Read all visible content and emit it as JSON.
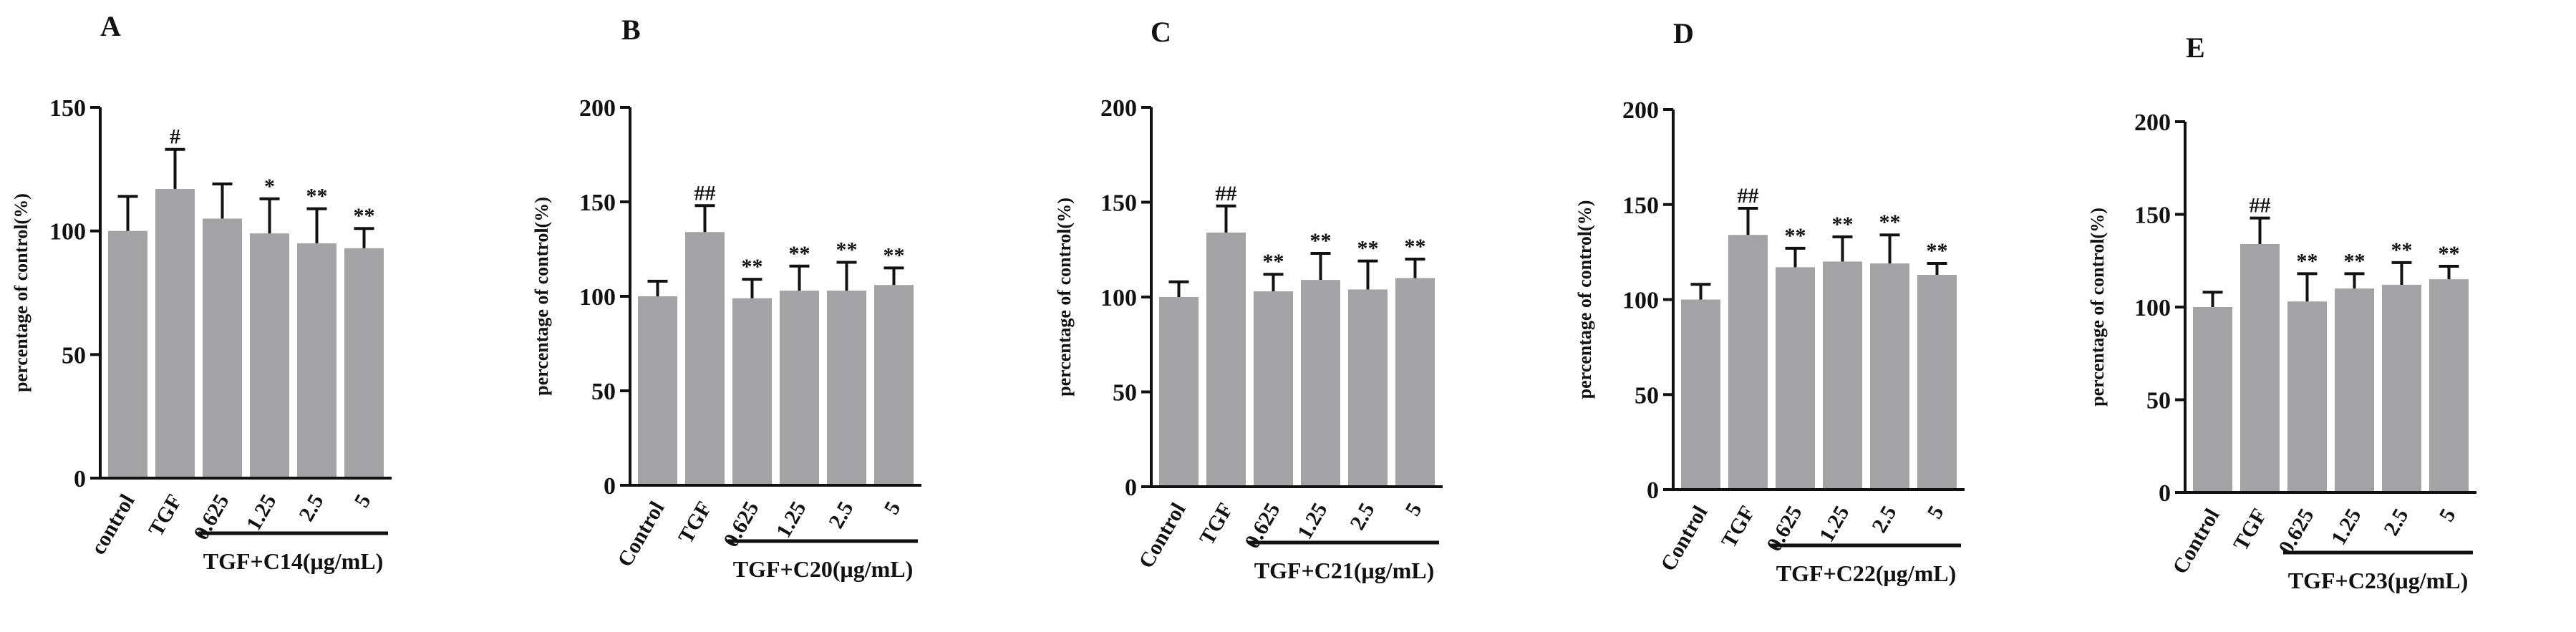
{
  "figure": {
    "bar_color": "#a3a3a5",
    "ink_color": "#111111",
    "background": "#ffffff"
  },
  "chart_data": [
    {
      "type": "bar",
      "panel": "A",
      "categories": [
        "control",
        "TGF",
        "0.625",
        "1.25",
        "2.5",
        "5"
      ],
      "values": [
        100,
        117,
        105,
        99,
        95,
        93
      ],
      "errors": [
        14,
        16,
        14,
        14,
        14,
        8
      ],
      "annotations": [
        "",
        "#",
        "",
        "*",
        "**",
        "**"
      ],
      "group_label": "TGF+C14(μg/mL)",
      "ylabel": "percentage of control(%)",
      "ylim": [
        0,
        150
      ],
      "yticks": [
        0,
        50,
        100,
        150
      ]
    },
    {
      "type": "bar",
      "panel": "B",
      "categories": [
        "Control",
        "TGF",
        "0.625",
        "1.25",
        "2.5",
        "5"
      ],
      "values": [
        100,
        134,
        99,
        103,
        103,
        106
      ],
      "errors": [
        8,
        14,
        10,
        13,
        15,
        9
      ],
      "annotations": [
        "",
        "##",
        "**",
        "**",
        "**",
        "**"
      ],
      "group_label": "TGF+C20(μg/mL)",
      "ylabel": "percentage of control(%)",
      "ylim": [
        0,
        200
      ],
      "yticks": [
        0,
        50,
        100,
        150,
        200
      ]
    },
    {
      "type": "bar",
      "panel": "C",
      "categories": [
        "Control",
        "TGF",
        "0.625",
        "1.25",
        "2.5",
        "5"
      ],
      "values": [
        100,
        134,
        103,
        109,
        104,
        110
      ],
      "errors": [
        8,
        14,
        9,
        14,
        15,
        10
      ],
      "annotations": [
        "",
        "##",
        "**",
        "**",
        "**",
        "**"
      ],
      "group_label": "TGF+C21(μg/mL)",
      "ylabel": "percentage of control(%)",
      "ylim": [
        0,
        200
      ],
      "yticks": [
        0,
        50,
        100,
        150,
        200
      ]
    },
    {
      "type": "bar",
      "panel": "D",
      "categories": [
        "Control",
        "TGF",
        "0.625",
        "1.25",
        "2.5",
        "5"
      ],
      "values": [
        100,
        134,
        117,
        120,
        119,
        113
      ],
      "errors": [
        8,
        14,
        10,
        13,
        15,
        6
      ],
      "annotations": [
        "",
        "##",
        "**",
        "**",
        "**",
        "**"
      ],
      "group_label": "TGF+C22(μg/mL)",
      "ylabel": "percentage of control(%)",
      "ylim": [
        0,
        200
      ],
      "yticks": [
        0,
        50,
        100,
        150,
        200
      ]
    },
    {
      "type": "bar",
      "panel": "E",
      "categories": [
        "Control",
        "TGF",
        "0.625",
        "1.25",
        "2.5",
        "5"
      ],
      "values": [
        100,
        134,
        103,
        110,
        112,
        115
      ],
      "errors": [
        8,
        14,
        15,
        8,
        12,
        7
      ],
      "annotations": [
        "",
        "##",
        "**",
        "**",
        "**",
        "**"
      ],
      "group_label": "TGF+C23(μg/mL)",
      "ylabel": "percentage of control(%)",
      "ylim": [
        0,
        200
      ],
      "yticks": [
        0,
        50,
        100,
        150,
        200
      ]
    }
  ]
}
